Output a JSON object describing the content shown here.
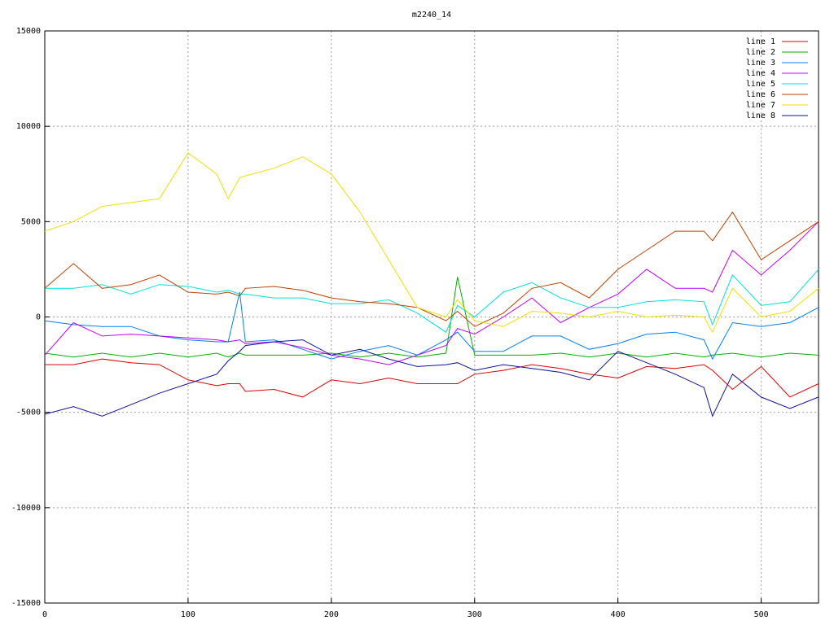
{
  "chart_data": {
    "type": "line",
    "title": "m2240_14",
    "x": [
      0,
      20,
      40,
      60,
      80,
      100,
      120,
      128,
      136,
      140,
      160,
      180,
      200,
      220,
      240,
      260,
      280,
      288,
      300,
      320,
      340,
      360,
      380,
      400,
      420,
      440,
      460,
      466,
      480,
      500,
      520,
      540
    ],
    "xlim": [
      0,
      540
    ],
    "xticks": [
      0,
      100,
      200,
      300,
      400,
      500
    ],
    "ylim": [
      -15000,
      15000
    ],
    "yticks": [
      -15000,
      -10000,
      -5000,
      0,
      5000,
      10000,
      15000
    ],
    "grid": true,
    "legend": "top-right",
    "series": [
      {
        "name": "line 1",
        "color": "#e00000",
        "values": [
          -2500,
          -2500,
          -2200,
          -2400,
          -2500,
          -3300,
          -3600,
          -3500,
          -3500,
          -3900,
          -3800,
          -4200,
          -3300,
          -3500,
          -3200,
          -3500,
          -3500,
          -3500,
          -3000,
          -2800,
          -2500,
          -2700,
          -3000,
          -3200,
          -2600,
          -2700,
          -2500,
          -2800,
          -3800,
          -2600,
          -4200,
          -3500
        ]
      },
      {
        "name": "line 2",
        "color": "#00b000",
        "values": [
          -1900,
          -2100,
          -1900,
          -2100,
          -1900,
          -2100,
          -1900,
          -2100,
          -1900,
          -2000,
          -2000,
          -2000,
          -1900,
          -2100,
          -1900,
          -2100,
          -1900,
          2100,
          -2000,
          -2000,
          -2000,
          -1900,
          -2100,
          -1900,
          -2100,
          -1900,
          -2100,
          -2000,
          -1900,
          -2100,
          -1900,
          -2000
        ]
      },
      {
        "name": "line 3",
        "color": "#0080ff",
        "values": [
          -200,
          -400,
          -500,
          -500,
          -1000,
          -1200,
          -1300,
          -1300,
          1300,
          -1300,
          -1200,
          -1700,
          -2200,
          -1800,
          -1500,
          -2000,
          -1200,
          -800,
          -1800,
          -1800,
          -1000,
          -1000,
          -1700,
          -1400,
          -900,
          -800,
          -1200,
          -2200,
          -300,
          -500,
          -300,
          500
        ]
      },
      {
        "name": "line 4",
        "color": "#c000ff",
        "values": [
          -2000,
          -300,
          -1000,
          -900,
          -1000,
          -1100,
          -1200,
          -1300,
          -1200,
          -1400,
          -1300,
          -1600,
          -2000,
          -2200,
          -2500,
          -2000,
          -1500,
          -600,
          -900,
          0,
          1000,
          -300,
          500,
          1200,
          2500,
          1500,
          1500,
          1300,
          3500,
          2200,
          3500,
          5000
        ]
      },
      {
        "name": "line 5",
        "color": "#00e0e0",
        "values": [
          1500,
          1500,
          1700,
          1200,
          1700,
          1600,
          1300,
          1400,
          1200,
          1200,
          1000,
          1000,
          700,
          700,
          900,
          200,
          -800,
          600,
          0,
          1300,
          1800,
          1000,
          500,
          500,
          800,
          900,
          800,
          -400,
          2200,
          600,
          800,
          2500
        ]
      },
      {
        "name": "line 6",
        "color": "#c04000",
        "values": [
          1500,
          2800,
          1500,
          1700,
          2200,
          1300,
          1200,
          1300,
          1100,
          1500,
          1600,
          1400,
          1000,
          800,
          700,
          500,
          -200,
          300,
          -500,
          200,
          1500,
          1800,
          1000,
          2500,
          3500,
          4500,
          4500,
          4000,
          5500,
          3000,
          4000,
          5000
        ]
      },
      {
        "name": "line 7",
        "color": "#f0e000",
        "values": [
          4500,
          5000,
          5800,
          6000,
          6200,
          8600,
          7500,
          6200,
          7300,
          7400,
          7800,
          8400,
          7500,
          5500,
          3000,
          500,
          0,
          900,
          -200,
          -500,
          300,
          200,
          0,
          300,
          0,
          100,
          0,
          -800,
          1500,
          0,
          300,
          1500
        ]
      },
      {
        "name": "line 8",
        "color": "#1010a0",
        "values": [
          -5100,
          -4700,
          -5200,
          -4600,
          -4000,
          -3500,
          -3000,
          -2300,
          -1800,
          -1500,
          -1300,
          -1200,
          -2000,
          -1700,
          -2200,
          -2600,
          -2500,
          -2400,
          -2800,
          -2500,
          -2700,
          -2900,
          -3300,
          -1800,
          -2400,
          -3000,
          -3700,
          -5200,
          -3000,
          -4200,
          -4800,
          -4200
        ]
      }
    ]
  }
}
